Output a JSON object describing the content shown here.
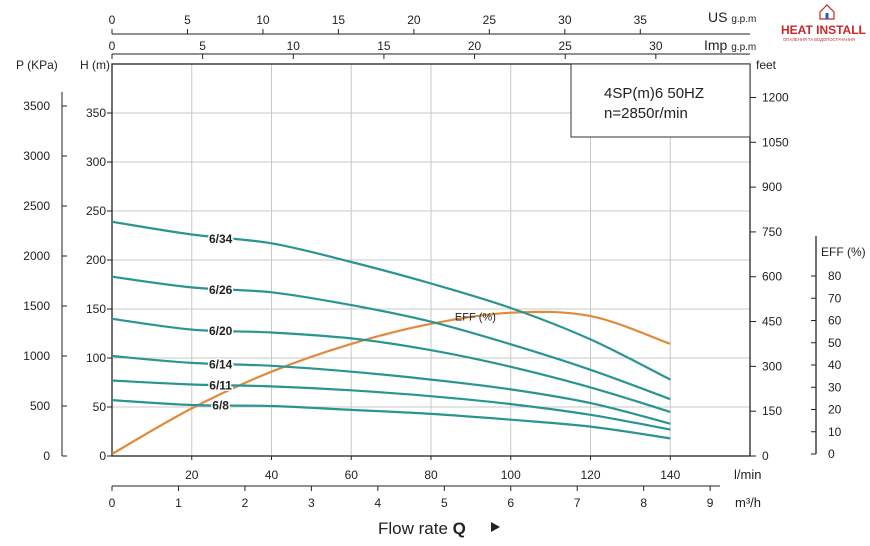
{
  "brand": {
    "name": "HEAT INSTALL",
    "tagline": "ОПАЛЕННЯ ТА ВОДОПОСТАЧАННЯ",
    "accent_color": "#c62828"
  },
  "chart_data": {
    "type": "line",
    "title": "4SP(m)6 50HZ",
    "subtitle": "n=2850r/min",
    "x_primary": {
      "label": "l/min",
      "ticks": [
        20,
        40,
        60,
        80,
        100,
        120,
        140
      ],
      "range": [
        0,
        160
      ]
    },
    "x_m3h": {
      "label": "m³/h",
      "ticks": [
        0,
        1,
        2,
        3,
        4,
        5,
        6,
        7,
        8,
        9
      ],
      "range": [
        0,
        9.6
      ]
    },
    "x_us_gpm": {
      "label": "US g.p.m",
      "ticks": [
        0,
        5,
        10,
        15,
        20,
        25,
        30,
        35
      ],
      "range": [
        0,
        42.3
      ]
    },
    "x_imp_gpm": {
      "label": "Imp g.p.m",
      "ticks": [
        0,
        5,
        10,
        15,
        20,
        25,
        30
      ],
      "range": [
        0,
        35.2
      ]
    },
    "y_head": {
      "label": "H (m)",
      "ticks": [
        0,
        50,
        100,
        150,
        200,
        250,
        300,
        350
      ],
      "range": [
        0,
        400
      ]
    },
    "y_pressure": {
      "label": "P (KPa)",
      "ticks": [
        0,
        500,
        1000,
        1500,
        2000,
        2500,
        3000,
        3500
      ],
      "range": [
        0,
        3920
      ]
    },
    "y_feet": {
      "label": "feet",
      "ticks": [
        0,
        150,
        300,
        450,
        600,
        750,
        900,
        1050,
        1200
      ],
      "range": [
        0,
        1312
      ]
    },
    "y_eff": {
      "label": "EFF (%)",
      "ticks": [
        0,
        10,
        20,
        30,
        40,
        50,
        60,
        70,
        80
      ],
      "range": [
        0,
        80
      ]
    },
    "x_caption": "Flow rate",
    "x_caption_symbol": "Q",
    "grid": true,
    "line_color": "#2a9590",
    "eff_color": "#e08a3c",
    "series": [
      {
        "name": "6/34",
        "x": [
          0,
          20,
          40,
          60,
          80,
          100,
          120,
          140
        ],
        "values": [
          239,
          226,
          217,
          198,
          176,
          151,
          119,
          78
        ]
      },
      {
        "name": "6/26",
        "x": [
          0,
          20,
          40,
          60,
          80,
          100,
          120,
          140
        ],
        "values": [
          183,
          172,
          167,
          154,
          137,
          114,
          88,
          58
        ]
      },
      {
        "name": "6/20",
        "x": [
          0,
          20,
          40,
          60,
          80,
          100,
          120,
          140
        ],
        "values": [
          140,
          129,
          126,
          120,
          108,
          91,
          70,
          45
        ]
      },
      {
        "name": "6/14",
        "x": [
          0,
          20,
          40,
          60,
          80,
          100,
          120,
          140
        ],
        "values": [
          102,
          95,
          92,
          86,
          78,
          68,
          54,
          33
        ]
      },
      {
        "name": "6/11",
        "x": [
          0,
          20,
          40,
          60,
          80,
          100,
          120,
          140
        ],
        "values": [
          77,
          73,
          71,
          67,
          61,
          53,
          42,
          27
        ]
      },
      {
        "name": "6/8",
        "x": [
          0,
          20,
          40,
          60,
          80,
          100,
          120,
          140
        ],
        "values": [
          57,
          52,
          51,
          47,
          43,
          37,
          30,
          18
        ]
      }
    ],
    "efficiency": {
      "name": "EFF (%)",
      "x": [
        0,
        20,
        40,
        60,
        80,
        100,
        120,
        140
      ],
      "values": [
        0,
        20.5,
        37,
        49.5,
        58.5,
        63.5,
        62,
        49.5
      ]
    }
  }
}
